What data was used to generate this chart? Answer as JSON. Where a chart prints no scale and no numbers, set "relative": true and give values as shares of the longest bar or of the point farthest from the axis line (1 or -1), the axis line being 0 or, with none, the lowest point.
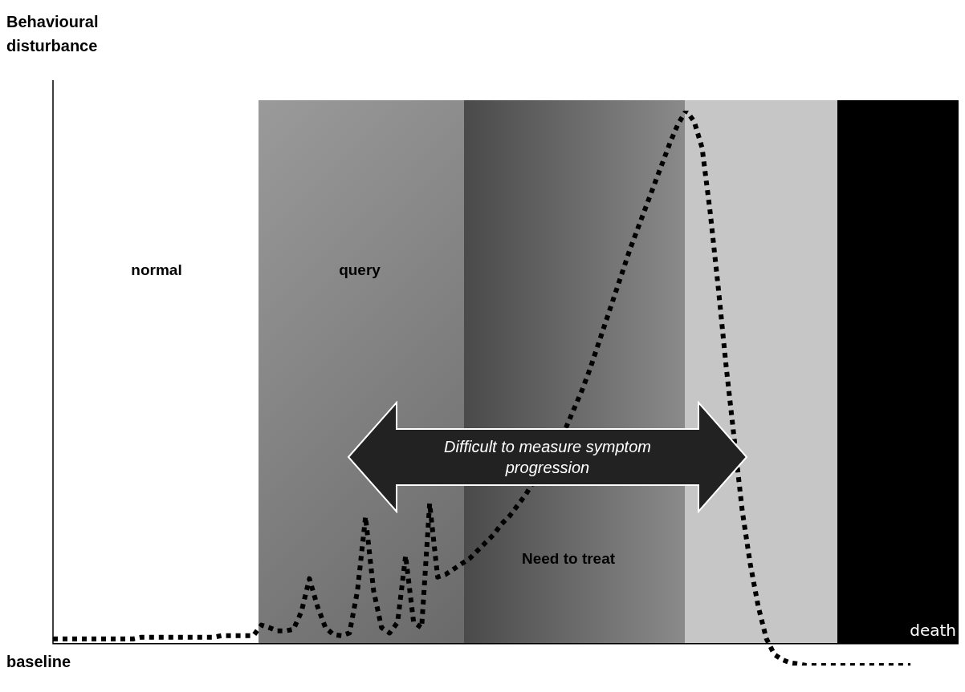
{
  "chart_data": {
    "type": "line",
    "ylabel": "Behavioural disturbance",
    "relative": true,
    "categories": [
      null,
      null,
      null,
      null,
      null,
      null,
      null,
      null,
      null,
      null,
      null,
      null,
      null,
      null,
      null,
      null,
      null,
      null,
      null,
      null,
      null,
      null,
      null,
      null,
      null,
      null,
      null,
      null,
      null,
      null,
      null,
      null,
      null,
      null,
      null,
      null,
      null,
      null,
      null,
      null,
      null,
      null,
      null,
      null,
      null,
      null,
      null,
      null,
      null,
      null,
      null,
      null,
      null,
      null,
      null,
      null,
      null,
      null,
      null,
      null,
      null,
      null,
      null,
      null,
      null,
      null,
      null,
      null,
      null,
      null,
      null,
      null,
      null,
      null,
      null,
      null,
      null,
      null,
      null,
      null,
      null,
      null,
      null,
      null,
      null,
      null,
      null,
      null,
      null,
      null,
      null,
      null,
      null,
      null,
      null,
      null,
      null,
      null,
      null,
      null,
      null,
      null,
      null,
      null,
      null,
      null,
      null,
      null,
      null,
      null,
      null,
      null,
      null,
      null
    ],
    "series": [
      {
        "color": "#000000",
        "line_style": "dotted",
        "marker": "none",
        "values": [
          0.009,
          0.009,
          0.009,
          0.009,
          0.009,
          0.009,
          0.009,
          0.009,
          0.009,
          0.009,
          0.009,
          0.012,
          0.012,
          0.012,
          0.012,
          0.012,
          0.012,
          0.012,
          0.012,
          0.012,
          0.012,
          0.015,
          0.015,
          0.015,
          0.015,
          0.015,
          0.035,
          0.03,
          0.024,
          0.024,
          0.027,
          0.06,
          0.122,
          0.07,
          0.03,
          0.017,
          0.015,
          0.02,
          0.1,
          0.238,
          0.1,
          0.03,
          0.02,
          0.04,
          0.165,
          0.04,
          0.03,
          0.263,
          0.125,
          0.13,
          0.14,
          0.15,
          0.16,
          0.175,
          0.19,
          0.205,
          0.225,
          0.24,
          0.26,
          0.28,
          null,
          null,
          null,
          null,
          0.405,
          0.44,
          0.475,
          0.515,
          0.56,
          0.605,
          0.65,
          0.695,
          0.74,
          0.78,
          0.82,
          0.86,
          0.9,
          0.94,
          0.975,
          1,
          0.98,
          0.93,
          0.81,
          0.67,
          0.52,
          null,
          0.25,
          0.15,
          0.07,
          0.01,
          -0.02,
          -0.03,
          -0.036,
          -0.038,
          -0.041,
          -0.041,
          -0.041,
          -0.041,
          -0.041,
          -0.041,
          -0.041,
          -0.041,
          -0.041,
          -0.041,
          -0.041,
          -0.041,
          -0.041,
          -0.041,
          null,
          null,
          null,
          null,
          null,
          null
        ]
      }
    ],
    "annotations": [
      "normal",
      "query",
      "Need to treat",
      "death",
      "Difficult to measure symptom progression",
      "baseline"
    ]
  }
}
